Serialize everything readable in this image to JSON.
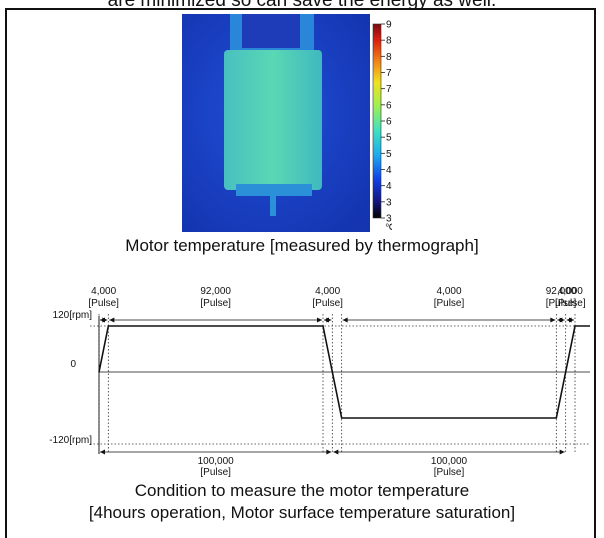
{
  "intro_text": "are minimized so can save the energy as well.",
  "thermograph": {
    "scale_ticks": [
      "90",
      "85",
      "80",
      "75",
      "70",
      "65",
      "60",
      "55",
      "50",
      "45",
      "40",
      "35",
      "30"
    ],
    "unit": "℃",
    "colors": {
      "background": "#1840c8",
      "body": "#5ad2b8",
      "hot": "#c81e14"
    }
  },
  "caption_1": "Motor temperature [measured by thermograph]",
  "chart_data": {
    "type": "line",
    "title": "",
    "xlabel": "",
    "ylabel": "",
    "y_tick_labels": [
      "120[rpm]",
      "0",
      "-120[rpm]"
    ],
    "ylim": [
      -120,
      120
    ],
    "x": [
      0,
      4000,
      96000,
      100000,
      104000,
      196000,
      200000,
      204000
    ],
    "values": [
      0,
      120,
      120,
      0,
      -120,
      -120,
      0,
      120
    ],
    "top_annotations": [
      {
        "value": "4,000",
        "unit": "[Pulse]"
      },
      {
        "value": "92,000",
        "unit": "[Pulse]"
      },
      {
        "value": "4,000",
        "unit": "[Pulse]"
      },
      {
        "value": "4,000",
        "unit": "[Pulse]"
      },
      {
        "value": "92,000",
        "unit": "[Pulse]"
      },
      {
        "value": "4,000",
        "unit": "[Pulse]"
      }
    ],
    "bottom_annotations": [
      {
        "value": "100,000",
        "unit": "[Pulse]"
      },
      {
        "value": "100,000",
        "unit": "[Pulse]"
      }
    ],
    "grid": false
  },
  "caption_2": "Condition to measure the motor temperature",
  "caption_3": "[4hours operation, Motor surface temperature saturation]"
}
